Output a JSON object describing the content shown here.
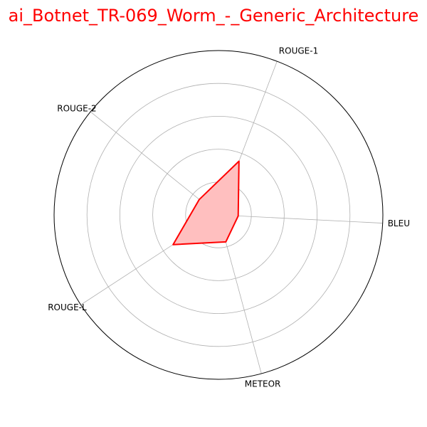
{
  "chart_data": {
    "type": "radar",
    "title": "ai_Botnet_TR-069_Worm_-_Generic_Architecture",
    "axes": [
      "BLEU",
      "ROUGE-1",
      "ROUGE-2",
      "ROUGE-L",
      "METEOR"
    ],
    "rmax": 1.0,
    "rings": [
      0.2,
      0.4,
      0.6,
      0.8
    ],
    "grid": true,
    "series": [
      {
        "values": [
          0.12,
          0.35,
          0.15,
          0.33,
          0.17
        ]
      }
    ],
    "colors": {
      "title": "#ff0000",
      "series_line": "#ff0000",
      "series_fill": "#ffbfbf",
      "grid": "#b0b0b0",
      "frame": "#000000"
    }
  }
}
